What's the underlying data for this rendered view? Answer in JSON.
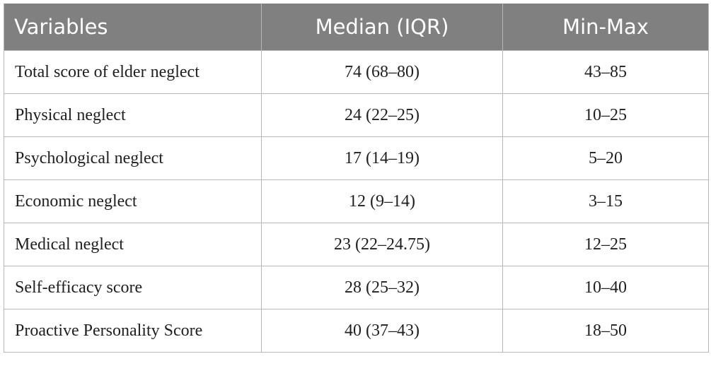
{
  "table": {
    "headers": [
      "Variables",
      "Median (IQR)",
      "Min-Max"
    ],
    "rows": [
      {
        "variable": "Total score of elder neglect",
        "median_iqr": "74 (68–80)",
        "min_max": "43–85"
      },
      {
        "variable": "Physical neglect",
        "median_iqr": "24 (22–25)",
        "min_max": "10–25"
      },
      {
        "variable": "Psychological neglect",
        "median_iqr": "17 (14–19)",
        "min_max": "5–20"
      },
      {
        "variable": "Economic neglect",
        "median_iqr": "12 (9–14)",
        "min_max": "3–15"
      },
      {
        "variable": "Medical neglect",
        "median_iqr": "23 (22–24.75)",
        "min_max": "12–25"
      },
      {
        "variable": "Self-efficacy score",
        "median_iqr": "28 (25–32)",
        "min_max": "10–40"
      },
      {
        "variable": "Proactive Personality Score",
        "median_iqr": "40 (37–43)",
        "min_max": "18–50"
      }
    ]
  },
  "colors": {
    "header_background": "#808080",
    "header_text": "#ffffff",
    "border": "#b8b8b8",
    "body_text": "#1f1f1f"
  }
}
